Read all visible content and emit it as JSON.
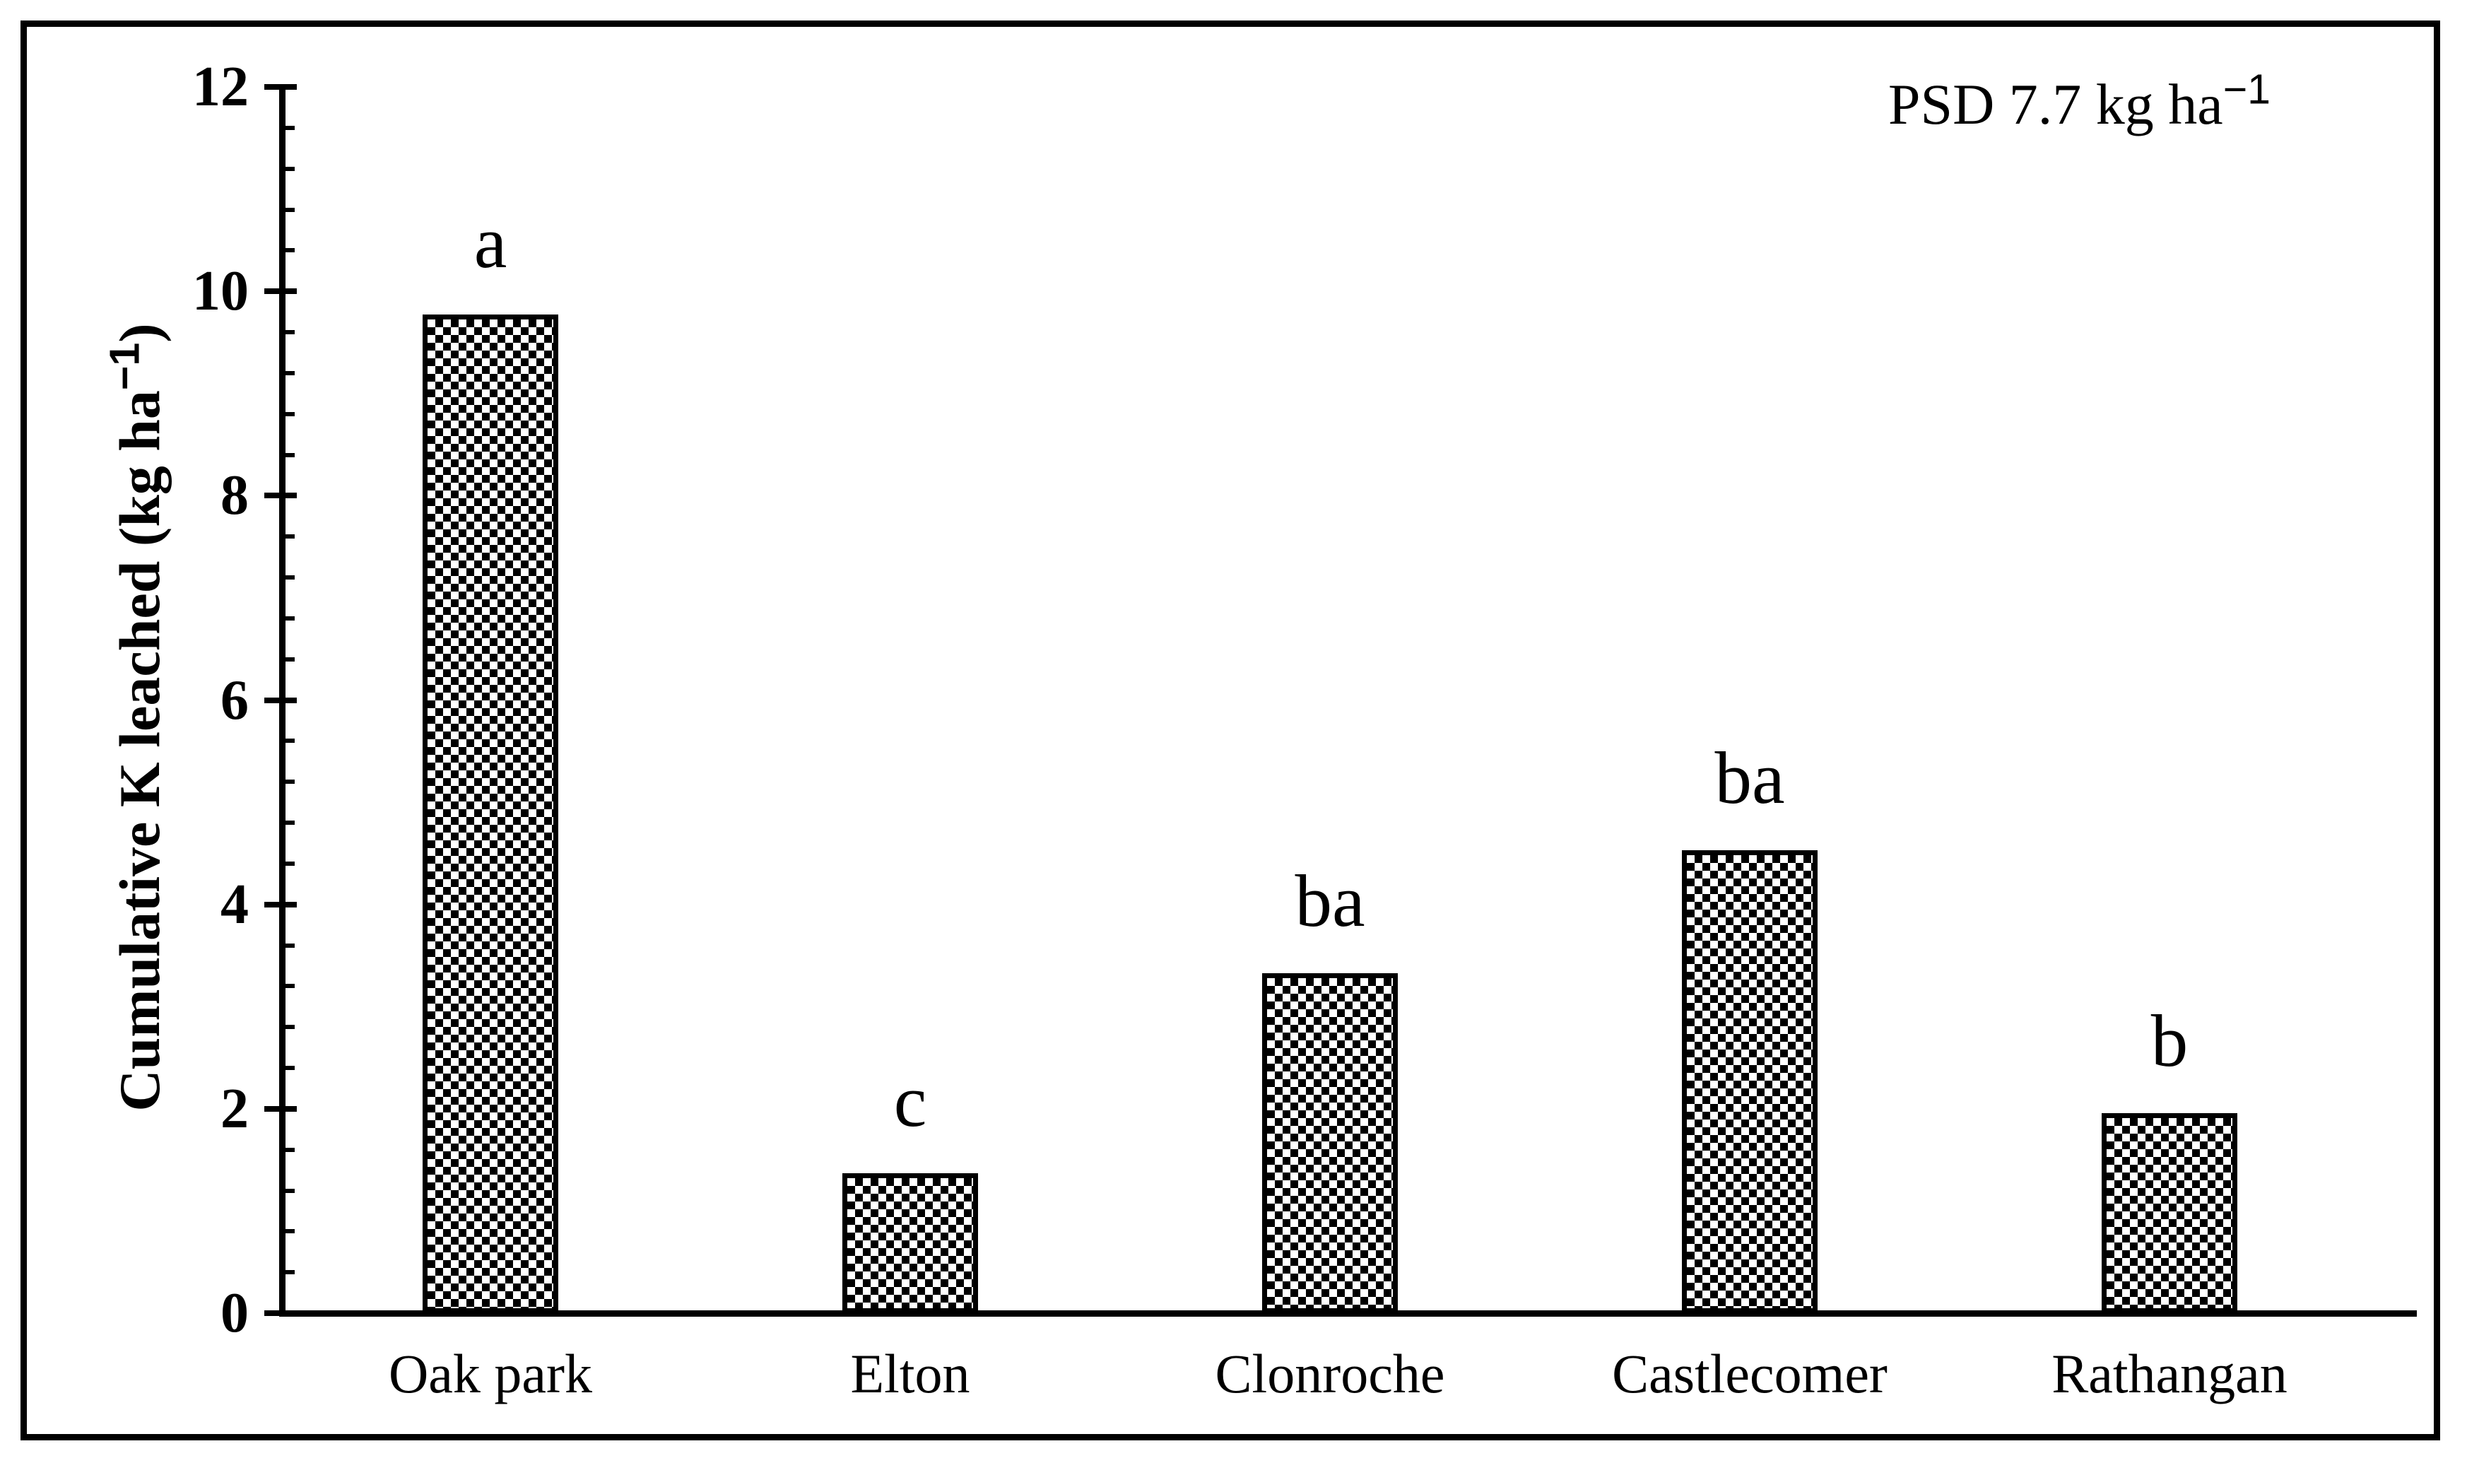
{
  "figure": {
    "annotation": {
      "text_main": "PSD 7.7 kg ha",
      "superscript": "−1",
      "full": "PSD 7.7 kg ha−1"
    },
    "y_axis_title": {
      "text_main": "Cumulative K leached (kg ha",
      "superscript": "−1",
      "suffix": ")",
      "full": "Cumulative K leached (kg ha−1)"
    }
  },
  "chart_data": {
    "type": "bar",
    "title": "",
    "categories": [
      "Oak park",
      "Elton",
      "Clonroche",
      "Castlecomer",
      "Rathangan"
    ],
    "values": [
      9.77,
      1.37,
      3.33,
      4.53,
      1.96
    ],
    "bar_letters": [
      "a",
      "c",
      "ba",
      "ba",
      "b"
    ],
    "xlabel": "",
    "ylabel": "Cumulative K leached (kg ha−1)",
    "ylim": [
      0,
      12
    ],
    "ytick_step": 2,
    "ytick_labels": [
      "0",
      "2",
      "4",
      "6",
      "8",
      "10",
      "12"
    ],
    "minor_tick_step": 0.4,
    "annotation": "PSD 7.7 kg ha−1",
    "legend": null,
    "grid": false,
    "bar_fill_style": "black-white checkerboard hatch",
    "bar_border_color": "#000000",
    "background_color": "#ffffff"
  }
}
